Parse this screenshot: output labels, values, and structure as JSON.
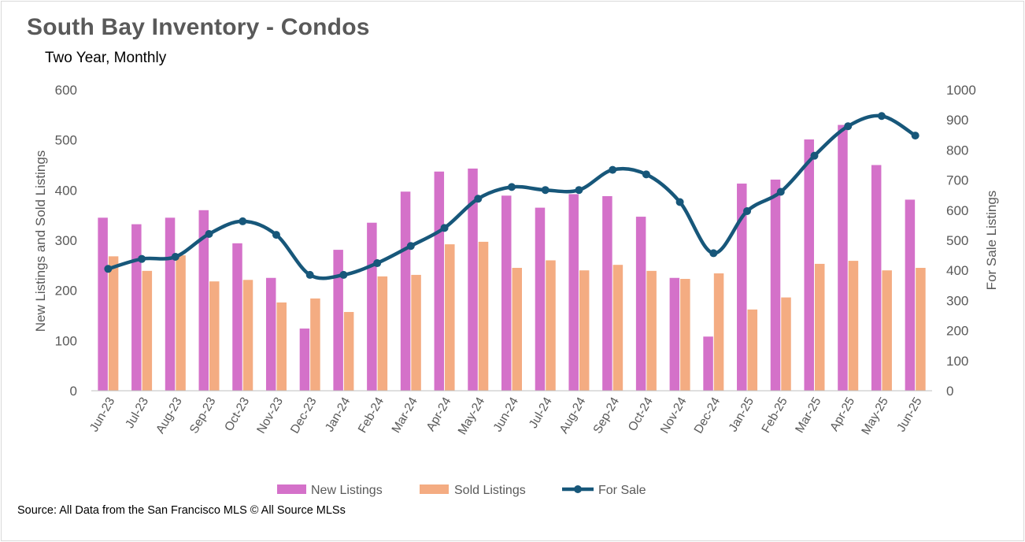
{
  "title": "South Bay Inventory - Condos",
  "subtitle": "Two Year, Monthly",
  "source": "Source: All Data from the San Francisco MLS © All Source MLSs",
  "colors": {
    "new_listings": "#D471C9",
    "sold_listings": "#F4AC82",
    "for_sale": "#17577A",
    "axis_text": "#595959",
    "gridline": "#d9d9d9"
  },
  "chart_data": {
    "type": "bar",
    "categories": [
      "Jun-23",
      "Jul-23",
      "Aug-23",
      "Sep-23",
      "Oct-23",
      "Nov-23",
      "Dec-23",
      "Jan-24",
      "Feb-24",
      "Mar-24",
      "Apr-24",
      "May-24",
      "Jun-24",
      "Jul-24",
      "Aug-24",
      "Sep-24",
      "Oct-24",
      "Nov-24",
      "Dec-24",
      "Jan-25",
      "Feb-25",
      "Mar-25",
      "Apr-25",
      "May-25",
      "Jun-25"
    ],
    "series": [
      {
        "name": "New Listings",
        "type": "bar",
        "axis": "left",
        "values": [
          345,
          332,
          345,
          360,
          294,
          225,
          124,
          281,
          335,
          397,
          437,
          443,
          389,
          365,
          392,
          388,
          347,
          225,
          108,
          413,
          421,
          501,
          530,
          450,
          381
        ]
      },
      {
        "name": "Sold Listings",
        "type": "bar",
        "axis": "left",
        "values": [
          268,
          239,
          270,
          218,
          221,
          176,
          184,
          157,
          228,
          231,
          292,
          297,
          245,
          260,
          240,
          251,
          239,
          223,
          234,
          162,
          186,
          253,
          259,
          240,
          245
        ]
      },
      {
        "name": "For Sale",
        "type": "line",
        "axis": "right",
        "values": [
          405,
          438,
          445,
          521,
          563,
          518,
          385,
          385,
          424,
          481,
          541,
          638,
          677,
          667,
          667,
          734,
          719,
          627,
          457,
          597,
          661,
          781,
          879,
          913,
          848
        ]
      }
    ],
    "ylabel_left": "New Listings and Sold Listings",
    "ylabel_right": "For Sale Listings",
    "ylim_left": [
      0,
      600
    ],
    "ylim_right": [
      0,
      1000
    ],
    "yticks_left": [
      "0",
      "100",
      "200",
      "300",
      "400",
      "500",
      "600"
    ],
    "yticks_right": [
      "0",
      "100",
      "200",
      "300",
      "400",
      "500",
      "600",
      "700",
      "800",
      "900",
      "1000"
    ],
    "grid": false,
    "legend_position": "bottom"
  }
}
